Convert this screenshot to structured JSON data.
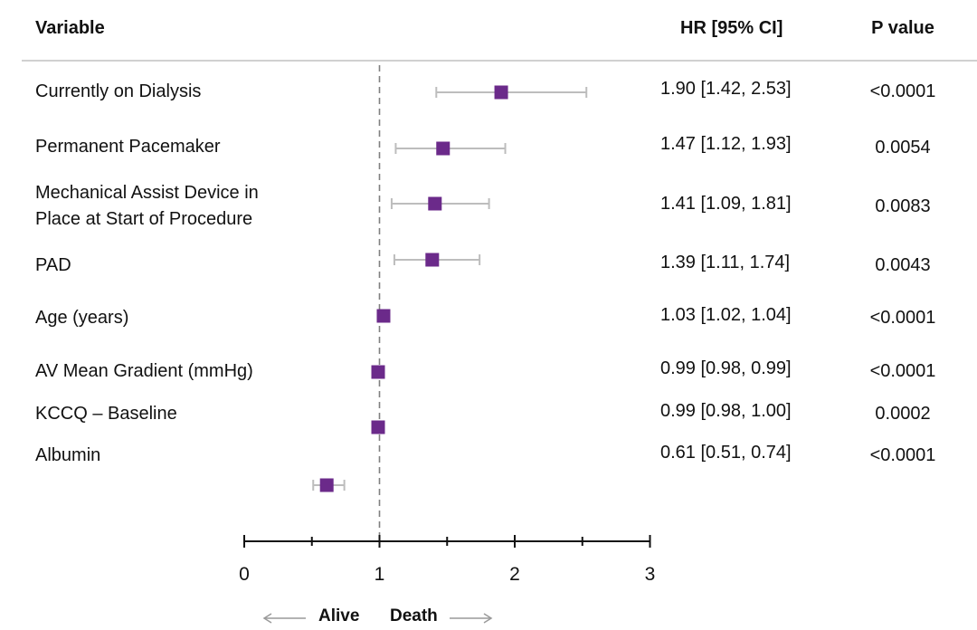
{
  "header": {
    "variable": "Variable",
    "hr": "HR [95% CI]",
    "pvalue": "P value"
  },
  "colors": {
    "marker": "#6b2a8a",
    "whisker": "#bdbdbd",
    "refline": "#808080",
    "axis": "#111111"
  },
  "rows": [
    {
      "label": "Currently on Dialysis",
      "hr_text": "1.90 [1.42, 2.53]",
      "p": "<0.0001"
    },
    {
      "label": "Permanent Pacemaker",
      "hr_text": "1.47 [1.12, 1.93]",
      "p": "0.0054"
    },
    {
      "label": "Mechanical Assist Device in Place at Start of Procedure",
      "hr_text": "1.41 [1.09, 1.81]",
      "p": "0.0083"
    },
    {
      "label": "PAD",
      "hr_text": "1.39 [1.11, 1.74]",
      "p": "0.0043"
    },
    {
      "label": "Age (years)",
      "hr_text": "1.03 [1.02, 1.04]",
      "p": "<0.0001"
    },
    {
      "label": "AV Mean Gradient (mmHg)",
      "hr_text": "0.99 [0.98, 0.99]",
      "p": "<0.0001"
    },
    {
      "label": "KCCQ – Baseline",
      "hr_text": "0.99 [0.98, 1.00]",
      "p": "0.0002"
    },
    {
      "label": "Albumin",
      "hr_text": "0.61 [0.51, 0.74]",
      "p": "<0.0001"
    }
  ],
  "chart_data": {
    "type": "forest",
    "x_ticks": [
      "0",
      "1",
      "2",
      "3"
    ],
    "xlim": [
      0,
      3
    ],
    "reference_line": 1,
    "direction_labels": {
      "left": "Alive",
      "right": "Death"
    },
    "series": [
      {
        "variable": "Currently on Dialysis",
        "hr": 1.9,
        "lower": 1.42,
        "upper": 2.53
      },
      {
        "variable": "Permanent Pacemaker",
        "hr": 1.47,
        "lower": 1.12,
        "upper": 1.93
      },
      {
        "variable": "Mechanical Assist Device in Place at Start of Procedure",
        "hr": 1.41,
        "lower": 1.09,
        "upper": 1.81
      },
      {
        "variable": "PAD",
        "hr": 1.39,
        "lower": 1.11,
        "upper": 1.74
      },
      {
        "variable": "Age (years)",
        "hr": 1.03,
        "lower": 1.02,
        "upper": 1.04
      },
      {
        "variable": "AV Mean Gradient (mmHg)",
        "hr": 0.99,
        "lower": 0.98,
        "upper": 0.99
      },
      {
        "variable": "KCCQ – Baseline",
        "hr": 0.99,
        "lower": 0.98,
        "upper": 1.0
      },
      {
        "variable": "Albumin",
        "hr": 0.61,
        "lower": 0.51,
        "upper": 0.74
      }
    ]
  }
}
